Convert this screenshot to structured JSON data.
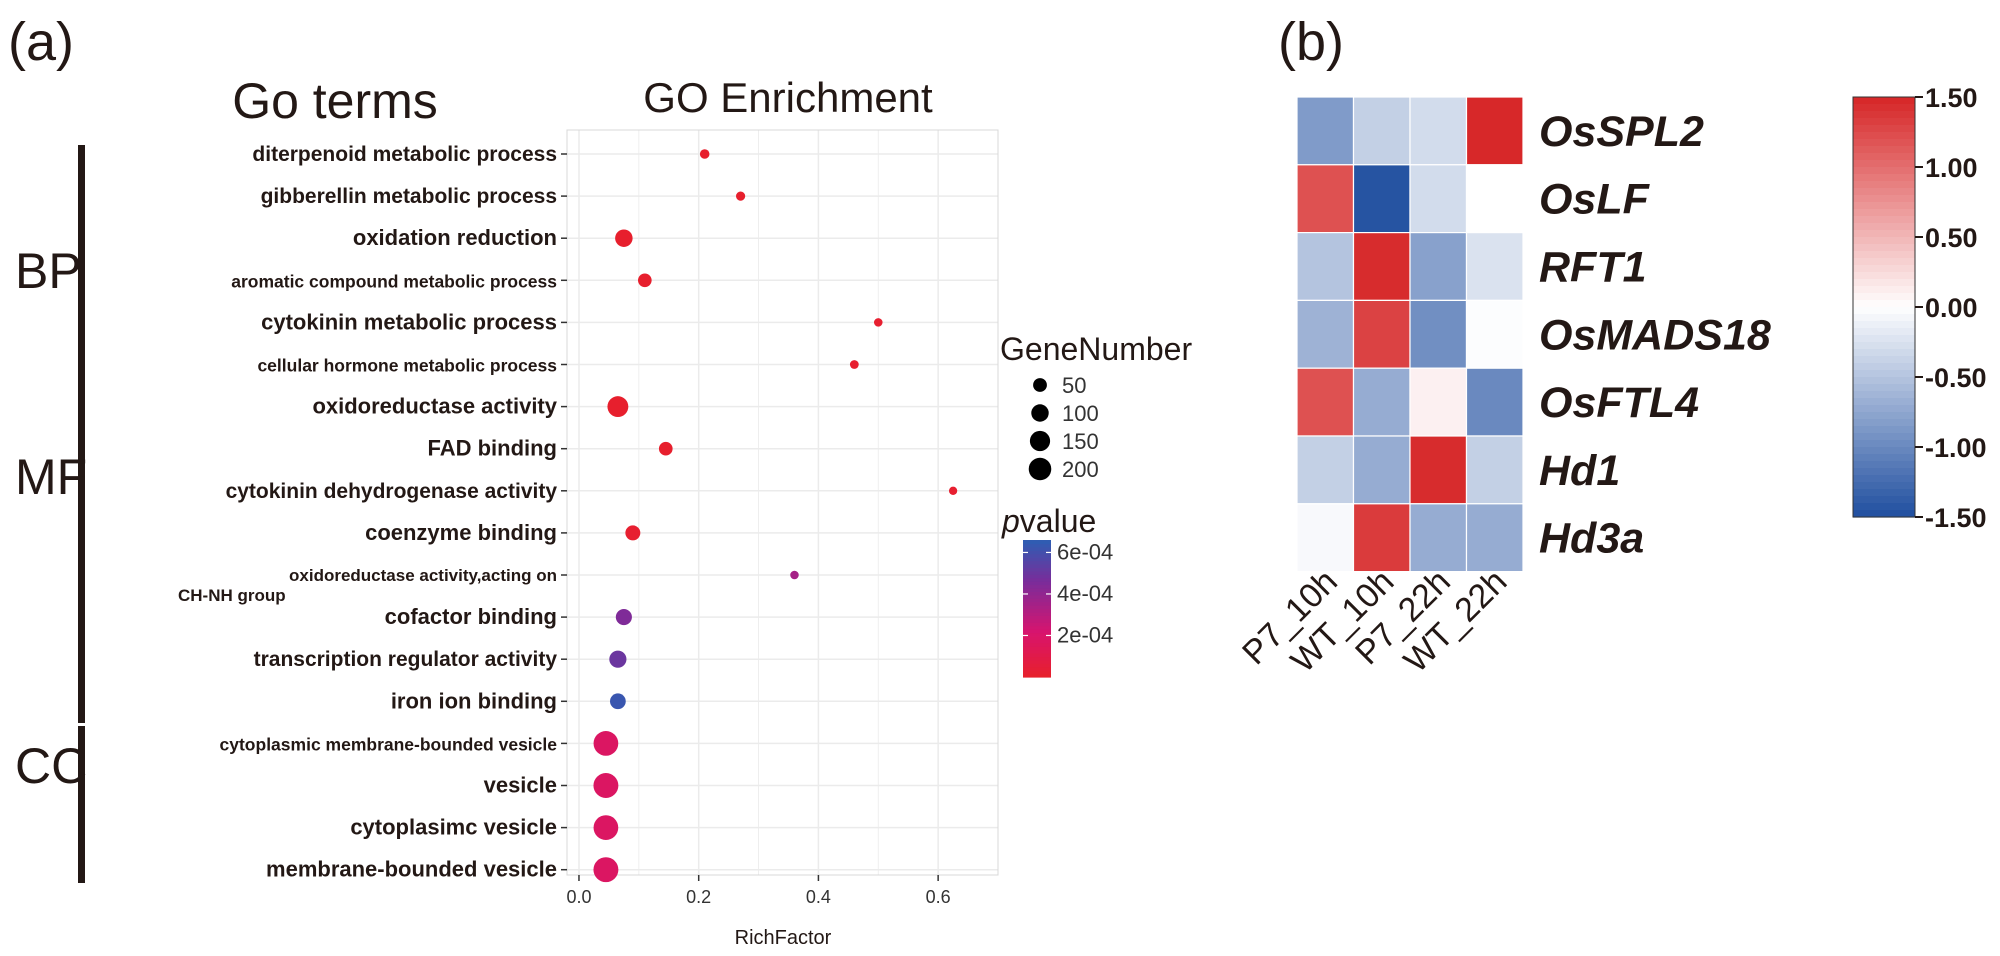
{
  "panel_a": {
    "tag": "(a)",
    "left_title": "Go terms",
    "category_labels": [
      "BP",
      "MF",
      "CC"
    ]
  },
  "panel_b": {
    "tag": "(b)"
  },
  "colors": {
    "ink": "#231815",
    "grid": "#ebebeb",
    "pvalue_low": "#e8202a",
    "pvalue_mid": "#d8146e",
    "pvalue_mid2": "#7a2c9a",
    "pvalue_high": "#2d5eb3",
    "heat_neg": "#1f4e9f",
    "heat_zero": "#ffffff",
    "heat_pos": "#d62526"
  },
  "chart_data": [
    {
      "type": "scatter",
      "title": "GO Enrichment",
      "xlabel": "RichFactor",
      "ylabel": "",
      "xlim": [
        -0.02,
        0.7
      ],
      "xticks": [
        0.0,
        0.2,
        0.4,
        0.6
      ],
      "xtick_labels": [
        "0.0",
        "0.2",
        "0.4",
        "0.6"
      ],
      "grid": true,
      "categories": [
        "diterpenoid metabolic process",
        "gibberellin metabolic process",
        "oxidation reduction",
        "aromatic compound metabolic process",
        "cytokinin metabolic process",
        "cellular hormone metabolic process",
        "oxidoreductase activity",
        "FAD binding",
        "cytokinin dehydrogenase activity",
        "coenzyme binding",
        "oxidoreductase activity,acting on CH-NH group",
        "cofactor binding",
        "transcription regulator activity",
        "iron ion binding",
        "cytoplasmic membrane-bounded vesicle",
        "vesicle",
        "cytoplasimc vesicle",
        "membrane-bounded vesicle"
      ],
      "category_groups": [
        {
          "name": "BP",
          "from": 0,
          "to": 5
        },
        {
          "name": "MF",
          "from": 6,
          "to": 13
        },
        {
          "name": "CC",
          "from": 14,
          "to": 17
        }
      ],
      "points": [
        {
          "term": "diterpenoid metabolic process",
          "rich_factor": 0.21,
          "gene_number": 12,
          "pvalue": 1e-05
        },
        {
          "term": "gibberellin metabolic process",
          "rich_factor": 0.27,
          "gene_number": 10,
          "pvalue": 1e-05
        },
        {
          "term": "oxidation reduction",
          "rich_factor": 0.075,
          "gene_number": 95,
          "pvalue": 1e-05
        },
        {
          "term": "aromatic compound metabolic process",
          "rich_factor": 0.11,
          "gene_number": 45,
          "pvalue": 1e-05
        },
        {
          "term": "cytokinin metabolic process",
          "rich_factor": 0.5,
          "gene_number": 7,
          "pvalue": 2e-05
        },
        {
          "term": "cellular hormone metabolic process",
          "rich_factor": 0.46,
          "gene_number": 8,
          "pvalue": 2e-05
        },
        {
          "term": "oxidoreductase activity",
          "rich_factor": 0.065,
          "gene_number": 155,
          "pvalue": 1e-05
        },
        {
          "term": "FAD binding",
          "rich_factor": 0.145,
          "gene_number": 45,
          "pvalue": 1e-05
        },
        {
          "term": "cytokinin dehydrogenase activity",
          "rich_factor": 0.625,
          "gene_number": 6,
          "pvalue": 2e-05
        },
        {
          "term": "coenzyme binding",
          "rich_factor": 0.09,
          "gene_number": 60,
          "pvalue": 2e-05
        },
        {
          "term": "oxidoreductase activity,acting on CH-NH group",
          "rich_factor": 0.36,
          "gene_number": 7,
          "pvalue": 0.00035
        },
        {
          "term": "cofactor binding",
          "rich_factor": 0.075,
          "gene_number": 75,
          "pvalue": 0.00045
        },
        {
          "term": "transcription regulator activity",
          "rich_factor": 0.065,
          "gene_number": 90,
          "pvalue": 0.0005
        },
        {
          "term": "iron ion binding",
          "rich_factor": 0.065,
          "gene_number": 70,
          "pvalue": 0.00063
        },
        {
          "term": "cytoplasmic membrane-bounded vesicle",
          "rich_factor": 0.045,
          "gene_number": 240,
          "pvalue": 0.00018
        },
        {
          "term": "vesicle",
          "rich_factor": 0.045,
          "gene_number": 245,
          "pvalue": 0.00018
        },
        {
          "term": "cytoplasimc vesicle",
          "rich_factor": 0.045,
          "gene_number": 240,
          "pvalue": 0.00018
        },
        {
          "term": "membrane-bounded vesicle",
          "rich_factor": 0.045,
          "gene_number": 245,
          "pvalue": 0.00018
        }
      ],
      "size_legend": {
        "title": "GeneNumber",
        "values": [
          50,
          100,
          150,
          200
        ],
        "labels": [
          "50",
          "100",
          "150",
          "200"
        ]
      },
      "color_legend": {
        "title_italic": "p",
        "title_rest": "value",
        "min": 0.0,
        "max": 0.00066,
        "ticks": [
          0.0002,
          0.0004,
          0.0006
        ],
        "tick_labels": [
          "2e-04",
          "4e-04",
          "6e-04"
        ]
      }
    },
    {
      "type": "heatmap",
      "title": "",
      "rows": [
        "OsSPL2",
        "OsLF",
        "RFT1",
        "OsMADS18",
        "OsFTL4",
        "Hd1",
        "Hd3a"
      ],
      "columns": [
        "P7_10h",
        "WT_10h",
        "P7_22h",
        "WT_22h"
      ],
      "values": [
        [
          -0.85,
          -0.4,
          -0.3,
          1.48
        ],
        [
          1.2,
          -1.45,
          -0.3,
          0.0
        ],
        [
          -0.5,
          1.45,
          -0.8,
          -0.25
        ],
        [
          -0.65,
          1.3,
          -0.95,
          -0.02
        ],
        [
          1.2,
          -0.7,
          0.1,
          -1.0
        ],
        [
          -0.4,
          -0.7,
          1.45,
          -0.4
        ],
        [
          -0.05,
          1.35,
          -0.7,
          -0.7
        ]
      ],
      "colorbar": {
        "min": -1.5,
        "max": 1.5,
        "ticks": [
          1.5,
          1.0,
          0.5,
          0.0,
          -0.5,
          -1.0,
          -1.5
        ],
        "tick_labels": [
          "1.50",
          "1.00",
          "0.50",
          "0.00",
          "-0.50",
          "-1.00",
          "-1.50"
        ]
      }
    }
  ]
}
